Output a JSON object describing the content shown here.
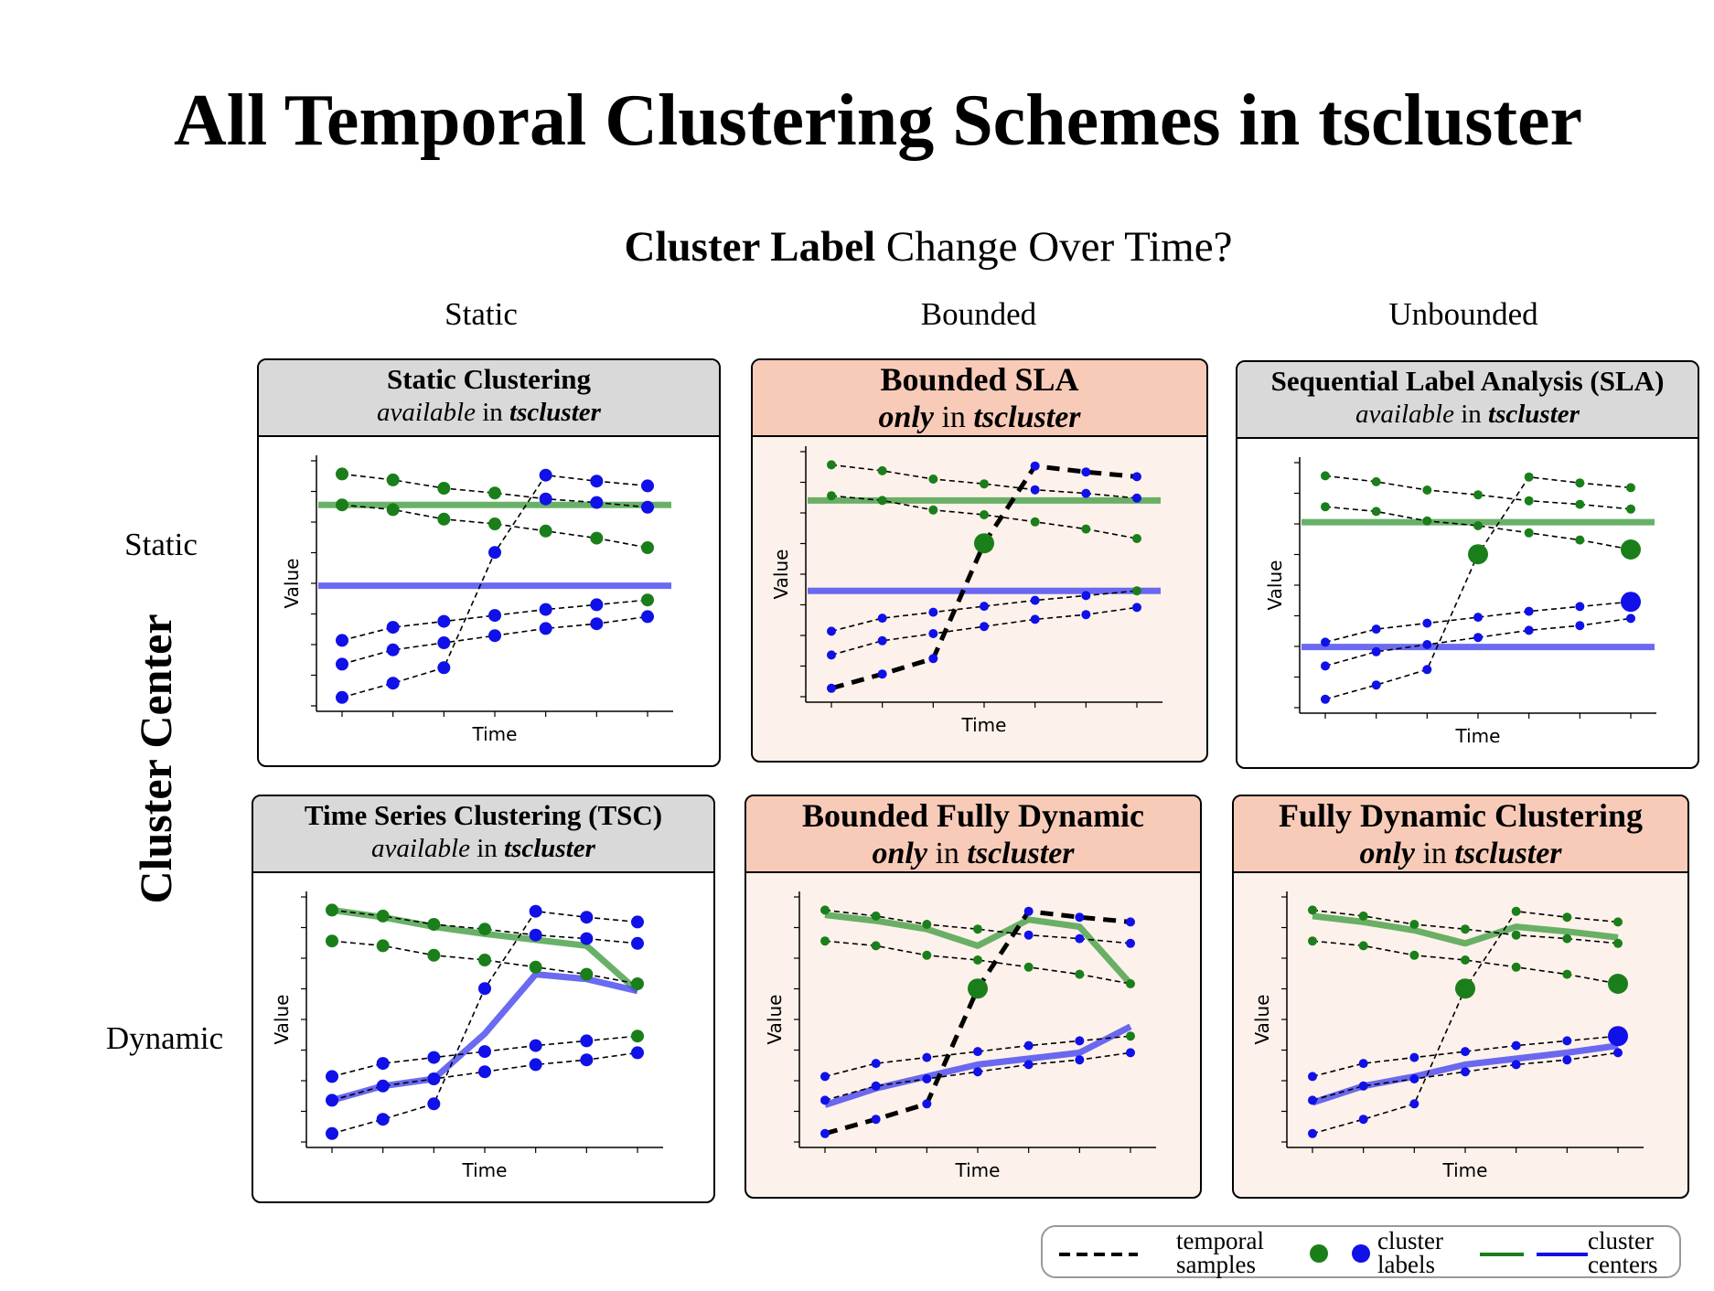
{
  "title": "All Temporal Clustering Schemes in tscluster",
  "top_axis": {
    "bold": "Cluster Label",
    "rest": " Change Over Time?"
  },
  "left_axis": "Cluster Center",
  "columns": [
    "Static",
    "Bounded",
    "Unbounded"
  ],
  "rows": [
    "Static",
    "Dynamic"
  ],
  "colors": {
    "green": "#1a7f1a",
    "blue": "#1010e8",
    "green_line": "#4fa34f",
    "blue_line": "#5050f0",
    "gray_header": "#d9d9d9",
    "pink_header": "#f8cbb8",
    "pink_bg": "#fdf1eb"
  },
  "panels": {
    "static_clustering": {
      "title": "Static Clustering",
      "sub_pre": "available",
      "sub_mid": " in ",
      "sub_bold": "tscluster"
    },
    "bounded_sla": {
      "title": "Bounded SLA",
      "sub_pre": "only",
      "sub_mid": " in ",
      "sub_bold": "tscluster"
    },
    "sla": {
      "title": "Sequential Label Analysis (SLA)",
      "sub_pre": "available",
      "sub_mid": " in ",
      "sub_bold": "tscluster"
    },
    "tsc": {
      "title": "Time Series Clustering (TSC)",
      "sub_pre": "available",
      "sub_mid": " in ",
      "sub_bold": "tscluster"
    },
    "bounded_fully_dynamic": {
      "title": "Bounded Fully Dynamic",
      "sub_pre": "only",
      "sub_mid": " in ",
      "sub_bold": "tscluster"
    },
    "fully_dynamic": {
      "title": "Fully Dynamic Clustering",
      "sub_pre": "only",
      "sub_mid": " in ",
      "sub_bold": "tscluster"
    }
  },
  "plot_labels": {
    "x": "Time",
    "y": "Value"
  },
  "legend": {
    "samples": [
      "temporal",
      "samples"
    ],
    "labels": [
      "cluster",
      "labels"
    ],
    "centers": [
      "cluster",
      "centers"
    ]
  }
}
